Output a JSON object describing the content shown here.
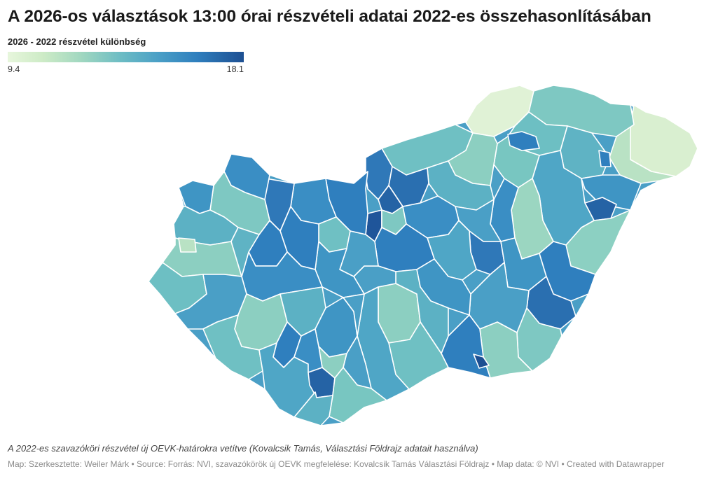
{
  "header": {
    "title": "A 2026-os választások 13:00 órai részvételi adatai 2022-es összehasonlításában"
  },
  "legend": {
    "title": "2026 - 2022 részvétel különbség",
    "min_label": "9.4",
    "max_label": "18.1",
    "min_value": 9.4,
    "max_value": 18.1,
    "colors": [
      "#e7f6dc",
      "#cdebc6",
      "#9ed6c0",
      "#6cbcc4",
      "#4a9fc6",
      "#2f7fbe",
      "#1d4f92"
    ]
  },
  "map": {
    "region": "Hungary",
    "unit": "OEVK electoral districts",
    "border_color": "#ffffff"
  },
  "footer": {
    "note": "A 2022-es szavazóköri részvétel új OEVK-határokra vetítve (Kovalcsik Tamás, Választási Földrajz adatait használva)",
    "map_credit": "Map: Szerkesztette: Weiler Márk",
    "source": "Source: Forrás: NVI, szavazókörök új OEVK megfelelése: Kovalcsik Tamás Választási Földrajz",
    "map_data": "Map data: © NVI",
    "created_with": "Created with Datawrapper",
    "separator": " • "
  }
}
